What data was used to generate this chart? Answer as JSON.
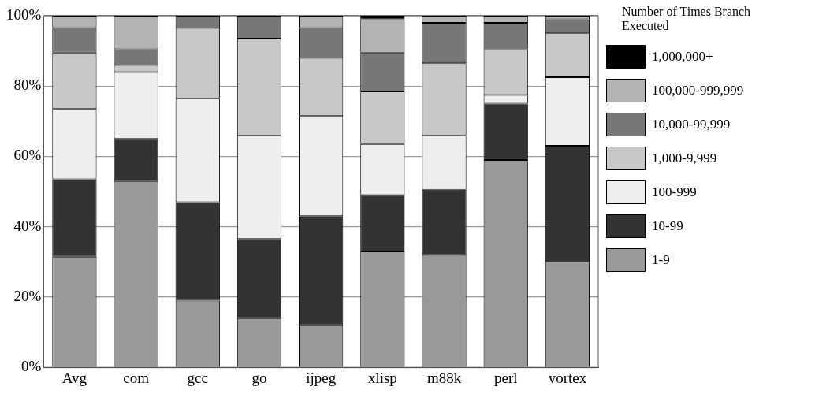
{
  "chart_data": {
    "type": "bar",
    "stacked": true,
    "legend_title": "Number of Times Branch Executed",
    "legend": "right",
    "grid": "y",
    "categories": [
      "Avg",
      "com",
      "gcc",
      "go",
      "ijpeg",
      "xlisp",
      "m88k",
      "perl",
      "vortex"
    ],
    "ylim": [
      0,
      100
    ],
    "yticks": [
      {
        "value": 0,
        "label": "0%"
      },
      {
        "value": 20,
        "label": "20%"
      },
      {
        "value": 40,
        "label": "40%"
      },
      {
        "value": 60,
        "label": "60%"
      },
      {
        "value": 80,
        "label": "80%"
      },
      {
        "value": 100,
        "label": "100%"
      }
    ],
    "series": [
      {
        "name": "1-9",
        "color": "#999999",
        "values": [
          31.5,
          53,
          19,
          14,
          12,
          33,
          32,
          59,
          30
        ]
      },
      {
        "name": "10-99",
        "color": "#333333",
        "values": [
          22,
          12,
          28,
          22.5,
          31,
          16,
          18.5,
          16,
          33
        ]
      },
      {
        "name": "100-999",
        "color": "#eeeeee",
        "values": [
          20,
          19,
          29.5,
          29.5,
          28.5,
          14.5,
          15.5,
          2.5,
          19.5
        ]
      },
      {
        "name": "1,000-9,999",
        "color": "#c8c8c8",
        "values": [
          16,
          2,
          20,
          27.5,
          16.5,
          15,
          20.5,
          13,
          12.5
        ]
      },
      {
        "name": "10,000-99,999",
        "color": "#777777",
        "values": [
          7,
          4.5,
          3.5,
          6.5,
          8.5,
          11,
          11.5,
          7.5,
          4
        ]
      },
      {
        "name": "100,000-999,999",
        "color": "#b3b3b3",
        "values": [
          3.5,
          9.5,
          0,
          0,
          3.5,
          9.5,
          2,
          2,
          1
        ]
      },
      {
        "name": "1,000,000+",
        "color": "#000000",
        "values": [
          0,
          0,
          0,
          0,
          0,
          1,
          0,
          0,
          0
        ]
      }
    ]
  }
}
